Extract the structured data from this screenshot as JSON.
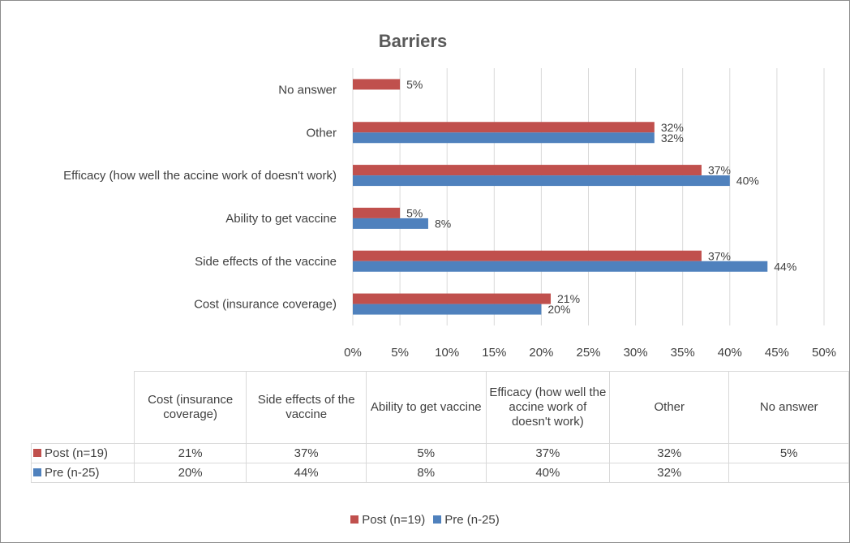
{
  "chart_data": {
    "type": "bar",
    "orientation": "horizontal",
    "title": "Barriers",
    "categories": [
      "Cost (insurance coverage)",
      "Side effects of the vaccine",
      "Ability to get vaccine",
      "Efficacy (how well the accine work of doesn't work)",
      "Other",
      "No answer"
    ],
    "series": [
      {
        "name": "Post (n=19)",
        "color": "#c0504d",
        "values": [
          21,
          37,
          5,
          37,
          32,
          5
        ],
        "labels": [
          "21%",
          "37%",
          "5%",
          "37%",
          "32%",
          "5%"
        ]
      },
      {
        "name": "Pre (n-25)",
        "color": "#4f81bd",
        "values": [
          20,
          44,
          8,
          40,
          32,
          null
        ],
        "labels": [
          "20%",
          "44%",
          "8%",
          "40%",
          "32%",
          ""
        ]
      }
    ],
    "xlim": [
      0,
      50
    ],
    "x_ticks": [
      "0%",
      "5%",
      "10%",
      "15%",
      "20%",
      "25%",
      "30%",
      "35%",
      "40%",
      "45%",
      "50%"
    ],
    "grid": true,
    "legend_position": "bottom",
    "data_table": true
  }
}
